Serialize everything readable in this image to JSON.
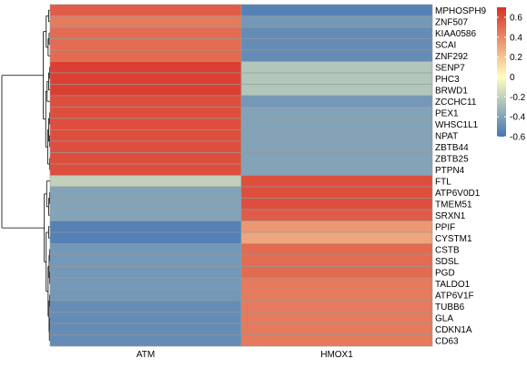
{
  "chart_data": {
    "type": "heatmap",
    "columns": [
      "ATM",
      "HMOX1"
    ],
    "rows": [
      "MPHOSPH9",
      "ZNF507",
      "KIAA0586",
      "SCAI",
      "ZNF292",
      "SENP7",
      "PHC3",
      "BRWD1",
      "ZCCHC11",
      "PEX1",
      "WHSC1L1",
      "NPAT",
      "ZBTB44",
      "ZBTB25",
      "PTPN4",
      "FTL",
      "ATP6V0D1",
      "TMEM51",
      "SRXN1",
      "PPIF",
      "CYSTM1",
      "CSTB",
      "SDSL",
      "PGD",
      "TALDO1",
      "ATP6V1F",
      "TUBB6",
      "GLA",
      "CDKN1A",
      "CD63"
    ],
    "values": [
      [
        0.55,
        -0.55
      ],
      [
        0.45,
        -0.45
      ],
      [
        0.5,
        -0.5
      ],
      [
        0.5,
        -0.5
      ],
      [
        0.5,
        -0.5
      ],
      [
        0.65,
        -0.25
      ],
      [
        0.65,
        -0.25
      ],
      [
        0.65,
        -0.25
      ],
      [
        0.6,
        -0.45
      ],
      [
        0.6,
        -0.4
      ],
      [
        0.6,
        -0.4
      ],
      [
        0.6,
        -0.4
      ],
      [
        0.6,
        -0.4
      ],
      [
        0.6,
        -0.4
      ],
      [
        0.6,
        -0.4
      ],
      [
        -0.2,
        0.6
      ],
      [
        -0.4,
        0.6
      ],
      [
        -0.4,
        0.6
      ],
      [
        -0.4,
        0.55
      ],
      [
        -0.55,
        0.35
      ],
      [
        -0.55,
        0.3
      ],
      [
        -0.45,
        0.5
      ],
      [
        -0.45,
        0.5
      ],
      [
        -0.45,
        0.5
      ],
      [
        -0.45,
        0.45
      ],
      [
        -0.45,
        0.45
      ],
      [
        -0.5,
        0.45
      ],
      [
        -0.5,
        0.45
      ],
      [
        -0.5,
        0.45
      ],
      [
        -0.5,
        0.45
      ]
    ],
    "color_scale": {
      "min": -0.6,
      "mid": 0,
      "max": 0.7,
      "low_color": "#4575b4",
      "mid_color": "#ffffbf",
      "high_color": "#d73027"
    },
    "legend": {
      "placement": "right",
      "ticks": [
        "0.6",
        "0.4",
        "0.2",
        "0",
        "-0.2",
        "-0.4",
        "-0.6"
      ],
      "tick_values": [
        0.6,
        0.4,
        0.2,
        0,
        -0.2,
        -0.4,
        -0.6
      ]
    },
    "row_dendrogram": true
  }
}
